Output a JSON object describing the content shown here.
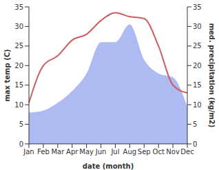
{
  "chart_data": {
    "type": "line",
    "categories": [
      "Jan",
      "Feb",
      "Mar",
      "Apr",
      "May",
      "Jun",
      "Jul",
      "Aug",
      "Sep",
      "Oct",
      "Nov",
      "Dec"
    ],
    "xlabel": "date (month)",
    "ylabel": "max temp (C)",
    "y2label": "med. precipitation (kg/m2)",
    "ylim": [
      0,
      35
    ],
    "yticks": [
      0,
      5,
      10,
      15,
      20,
      25,
      30,
      35
    ],
    "y2lim": [
      0,
      35
    ],
    "y2ticks": [
      0,
      5,
      10,
      15,
      20,
      25,
      30,
      35
    ],
    "grid": false,
    "series": [
      {
        "type": "area",
        "axis": "y2",
        "color": "#aebbf2",
        "values": [
          8,
          8.5,
          10.5,
          13.5,
          18,
          26,
          26,
          30.5,
          21.5,
          18,
          17,
          9.5
        ]
      },
      {
        "type": "line",
        "axis": "y",
        "color": "#cd5c5c",
        "values": [
          10.5,
          20,
          22.5,
          26.5,
          28,
          31.5,
          33.5,
          32.5,
          32,
          25,
          15,
          13
        ]
      }
    ]
  }
}
